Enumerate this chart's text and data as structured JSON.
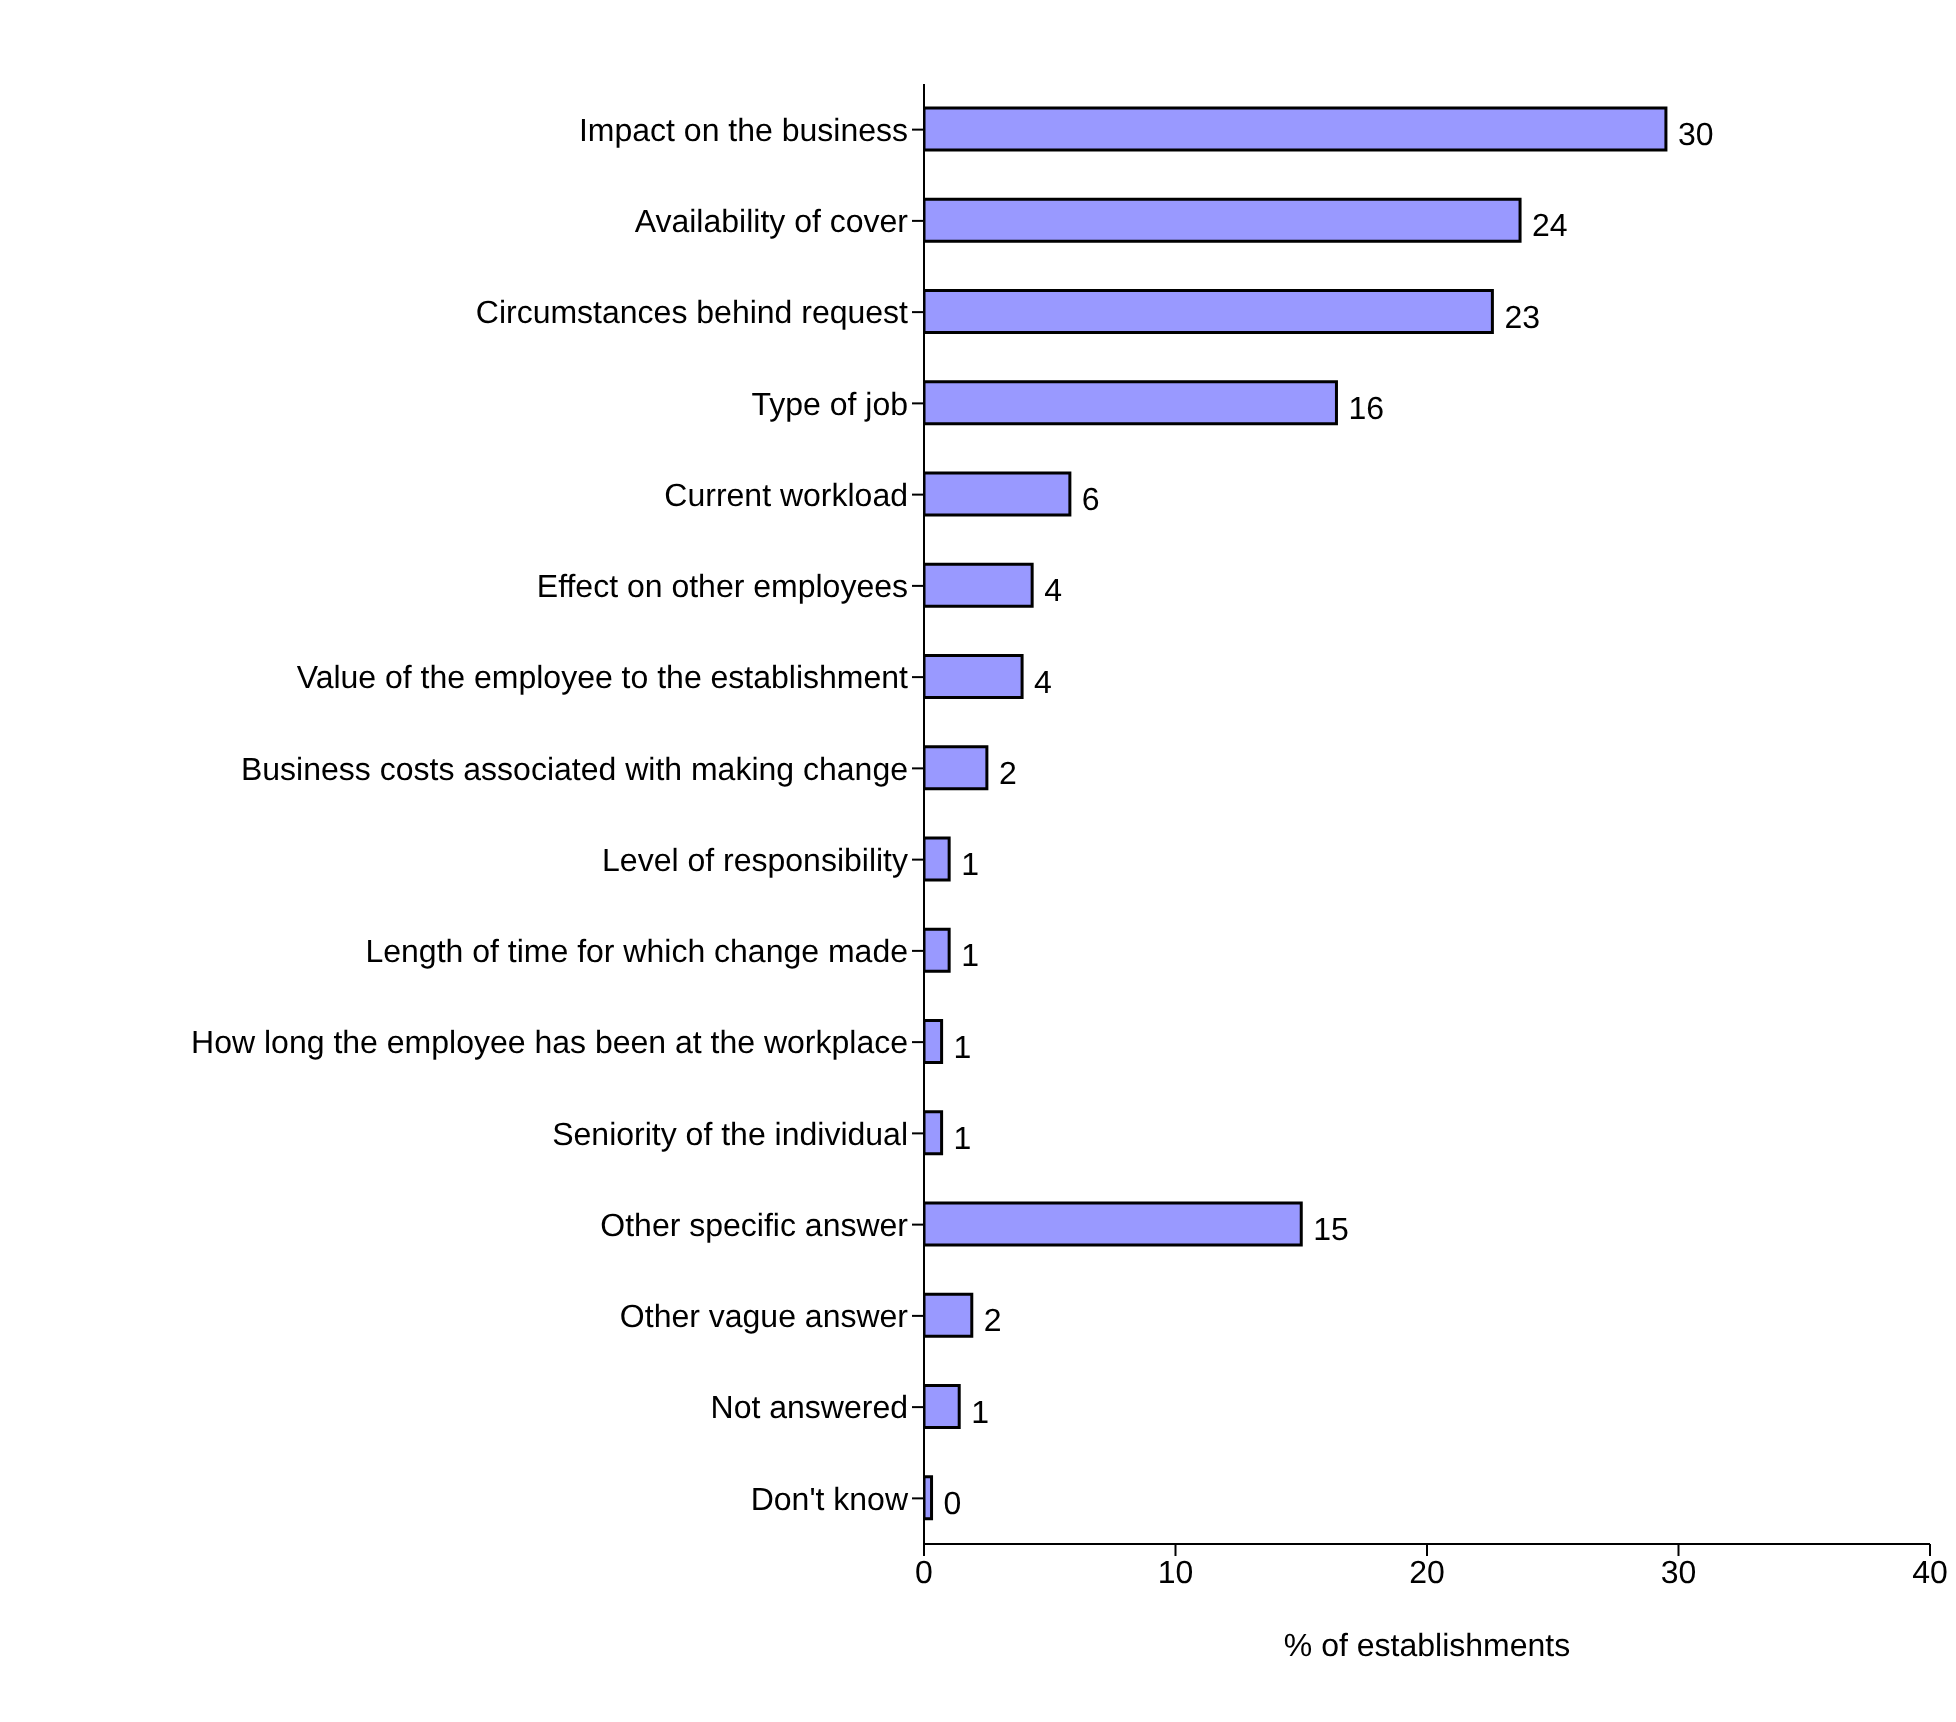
{
  "chart_data": {
    "type": "bar",
    "orientation": "horizontal",
    "xlabel": "% of establishments",
    "categories": [
      "Impact on the business",
      "Availability of cover",
      "Circumstances behind request",
      "Type of job",
      "Current workload",
      "Effect on other employees",
      "Value of the employee to the establishment",
      "Business costs associated with making change",
      "Level of responsibility",
      "Length of time for which change made",
      "How long the employee has been at the workplace",
      "Seniority of the individual",
      "Other specific answer",
      "Other vague answer",
      "Not answered",
      "Don't know"
    ],
    "values": [
      29.5,
      23.7,
      22.6,
      16.4,
      5.8,
      4.3,
      3.9,
      2.5,
      1.0,
      1.0,
      0.7,
      0.7,
      15.0,
      1.9,
      1.4,
      0.3
    ],
    "value_labels": [
      "30",
      "24",
      "23",
      "16",
      "6",
      "4",
      "4",
      "2",
      "1",
      "1",
      "1",
      "1",
      "15",
      "2",
      "1",
      "0"
    ],
    "color": "#9999ff",
    "xlim": [
      0,
      40
    ],
    "xticks": [
      0,
      10,
      20,
      30,
      40
    ],
    "grid": false
  }
}
